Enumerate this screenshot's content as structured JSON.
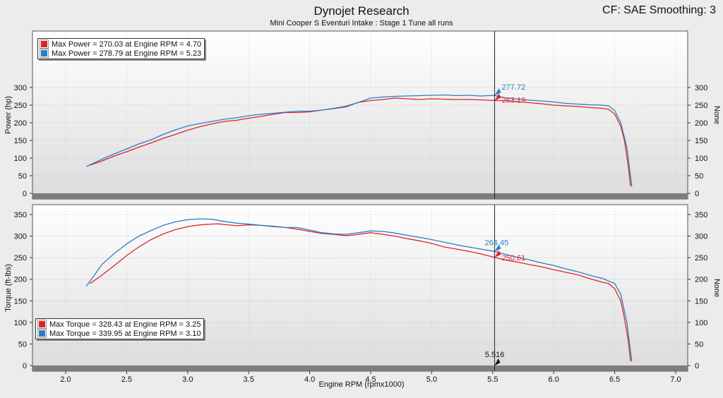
{
  "header": {
    "title": "Dynojet Research",
    "subtitle": "Mini Cooper S Eventuri Intake : Stage 1 Tune all runs",
    "cf_info": "CF: SAE Smoothing: 3"
  },
  "colors": {
    "red": "#e0232a",
    "blue": "#2a7fc4",
    "cursor": "#222222"
  },
  "chart_data": [
    {
      "type": "line",
      "title": "Power",
      "ylabel": "Power (hp)",
      "y2label": "None",
      "xlim": [
        1.7,
        7.1
      ],
      "ylim": [
        0,
        310
      ],
      "yticks": [
        "0",
        "50",
        "100",
        "150",
        "200",
        "250",
        "300"
      ],
      "grid": true,
      "legend": {
        "position": "top-left",
        "entries": [
          "Max Power = 270.03 at Engine RPM = 4.70",
          "Max Power = 278.79 at Engine RPM = 5.23"
        ]
      },
      "cursor_labels": {
        "blue": "277.72",
        "red": "263.19"
      },
      "series": [
        {
          "color": "red",
          "x": [
            2.2,
            2.3,
            2.4,
            2.5,
            2.6,
            2.7,
            2.8,
            2.9,
            3.0,
            3.1,
            3.2,
            3.3,
            3.4,
            3.5,
            3.6,
            3.7,
            3.8,
            3.9,
            4.0,
            4.1,
            4.2,
            4.3,
            4.4,
            4.5,
            4.6,
            4.7,
            4.8,
            4.9,
            5.0,
            5.1,
            5.2,
            5.3,
            5.4,
            5.516,
            5.6,
            5.7,
            5.8,
            5.9,
            6.0,
            6.1,
            6.2,
            6.3,
            6.4,
            6.45,
            6.5,
            6.55,
            6.58,
            6.61,
            6.63
          ],
          "values": [
            80,
            92,
            106,
            118,
            131,
            143,
            156,
            167,
            179,
            189,
            197,
            204,
            207,
            213,
            218,
            224,
            229,
            229,
            231,
            236,
            241,
            247,
            258,
            263,
            266,
            270,
            268,
            266,
            268,
            267,
            266,
            266,
            265,
            263,
            263,
            260,
            257,
            254,
            250,
            248,
            246,
            243,
            241,
            238,
            225,
            190,
            150,
            80,
            20
          ]
        },
        {
          "color": "blue",
          "x": [
            2.17,
            2.3,
            2.4,
            2.5,
            2.6,
            2.7,
            2.8,
            2.9,
            3.0,
            3.1,
            3.2,
            3.3,
            3.4,
            3.5,
            3.6,
            3.7,
            3.8,
            3.9,
            4.0,
            4.1,
            4.2,
            4.3,
            4.4,
            4.5,
            4.6,
            4.7,
            4.8,
            4.9,
            5.0,
            5.1,
            5.2,
            5.3,
            5.4,
            5.516,
            5.6,
            5.7,
            5.8,
            5.9,
            6.0,
            6.1,
            6.2,
            6.3,
            6.4,
            6.45,
            6.5,
            6.55,
            6.6,
            6.64
          ],
          "values": [
            76,
            97,
            112,
            126,
            140,
            152,
            167,
            180,
            191,
            198,
            204,
            210,
            214,
            220,
            224,
            227,
            230,
            233,
            233,
            236,
            240,
            245,
            258,
            270,
            273,
            275,
            276,
            277,
            278,
            279,
            277,
            278,
            276,
            277.72,
            271,
            267,
            264,
            262,
            259,
            255,
            253,
            251,
            250,
            248,
            235,
            200,
            130,
            20
          ]
        }
      ]
    },
    {
      "type": "line",
      "title": "Torque",
      "ylabel": "Torque (ft-lbs)",
      "y2label": "None",
      "xlabel": "Engine RPM (rpmx1000)",
      "xlim": [
        1.7,
        7.1
      ],
      "ylim": [
        0,
        370
      ],
      "xticks": [
        "2.0",
        "2.5",
        "3.0",
        "3.5",
        "4.0",
        "4.5",
        "5.0",
        "5.5",
        "6.0",
        "6.5",
        "7.0"
      ],
      "yticks": [
        "0",
        "50",
        "100",
        "150",
        "200",
        "250",
        "300",
        "350"
      ],
      "grid": true,
      "legend": {
        "position": "bottom-left",
        "entries": [
          "Max Torque = 328.43 at Engine RPM = 3.25",
          "Max Torque = 339.95 at Engine RPM = 3.10"
        ]
      },
      "cursor_labels": {
        "blue": "264.45",
        "red": "250.61",
        "x": "5.516"
      },
      "series": [
        {
          "color": "red",
          "x": [
            2.2,
            2.3,
            2.4,
            2.5,
            2.6,
            2.7,
            2.8,
            2.9,
            3.0,
            3.1,
            3.2,
            3.25,
            3.3,
            3.4,
            3.5,
            3.6,
            3.7,
            3.8,
            3.9,
            4.0,
            4.1,
            4.2,
            4.3,
            4.4,
            4.5,
            4.6,
            4.7,
            4.8,
            4.9,
            5.0,
            5.1,
            5.2,
            5.3,
            5.4,
            5.516,
            5.6,
            5.7,
            5.8,
            5.9,
            6.0,
            6.1,
            6.2,
            6.3,
            6.4,
            6.45,
            6.5,
            6.55,
            6.58,
            6.61,
            6.63
          ],
          "values": [
            190,
            210,
            232,
            255,
            275,
            292,
            305,
            315,
            322,
            326,
            328,
            328.43,
            327,
            324,
            326,
            325,
            322,
            320,
            316,
            311,
            306,
            304,
            301,
            304,
            308,
            304,
            300,
            294,
            289,
            283,
            275,
            270,
            265,
            259,
            250.61,
            245,
            240,
            234,
            229,
            222,
            216,
            210,
            201,
            193,
            190,
            178,
            150,
            110,
            60,
            10
          ]
        },
        {
          "color": "blue",
          "x": [
            2.17,
            2.3,
            2.4,
            2.5,
            2.6,
            2.7,
            2.8,
            2.9,
            3.0,
            3.1,
            3.2,
            3.3,
            3.4,
            3.5,
            3.6,
            3.7,
            3.8,
            3.9,
            4.0,
            4.1,
            4.2,
            4.3,
            4.4,
            4.5,
            4.6,
            4.7,
            4.8,
            4.9,
            5.0,
            5.1,
            5.2,
            5.3,
            5.4,
            5.516,
            5.6,
            5.7,
            5.8,
            5.9,
            6.0,
            6.1,
            6.2,
            6.3,
            6.4,
            6.45,
            6.5,
            6.55,
            6.6,
            6.64
          ],
          "values": [
            184,
            235,
            260,
            282,
            300,
            313,
            325,
            333,
            338,
            340,
            339,
            334,
            330,
            328,
            325,
            323,
            320,
            320,
            314,
            308,
            305,
            304,
            308,
            312,
            311,
            307,
            302,
            297,
            292,
            286,
            280,
            275,
            270,
            264.45,
            258,
            251,
            245,
            238,
            232,
            224,
            217,
            209,
            202,
            196,
            190,
            165,
            100,
            10
          ]
        }
      ]
    }
  ]
}
